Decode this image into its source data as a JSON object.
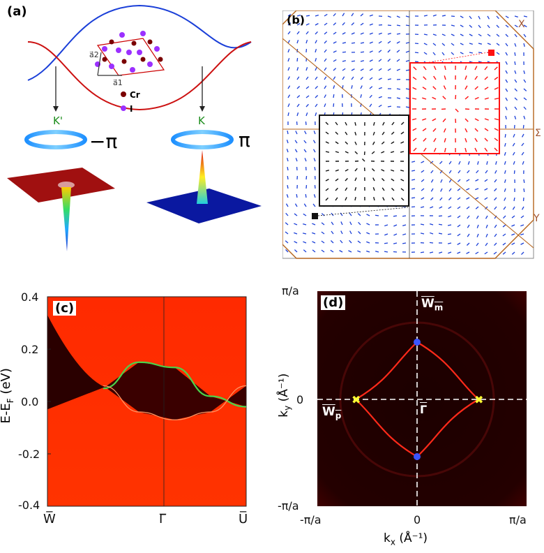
{
  "panel_a": {
    "label": "(a)",
    "lattice_a1": "a⃗1",
    "lattice_a2": "a⃗2",
    "legend_cr": "Cr",
    "legend_i": "I",
    "valley_left": "K'",
    "valley_right": "K",
    "berry_left": "−π",
    "berry_right": "π"
  },
  "panel_b": {
    "label": "(b)",
    "point_x": "X",
    "point_sigma": "Σ",
    "point_y": "Y"
  },
  "panel_c": {
    "label": "(c)",
    "ylabel": "E-E",
    "ylabel_sub": "F",
    "ylabel_unit": " (eV)",
    "xticks": [
      "W̅",
      "Γ̅",
      "U̅"
    ],
    "yticks": [
      "0.4",
      "0.2",
      "0.0",
      "-0.2",
      "-0.4"
    ]
  },
  "panel_d": {
    "label": "(d)",
    "xlabel": "k",
    "xlabel_sub": "x",
    "xlabel_unit": " (Å⁻¹)",
    "ylabel": "k",
    "ylabel_sub": "y",
    "ylabel_unit": " (Å⁻¹)",
    "xticks": [
      "-π/a",
      "0",
      "π/a"
    ],
    "yticks": [
      "π/a",
      "0",
      "-π/a"
    ],
    "point_wm": "W",
    "point_wm_sub": "m",
    "point_wp": "W",
    "point_wp_sub": "p",
    "point_gamma": "Γ"
  },
  "chart_data": [
    {
      "type": "line",
      "panel": "c",
      "x_ticks": [
        "W̅",
        "Γ̅",
        "U̅"
      ],
      "ylim": [
        -0.4,
        0.4
      ],
      "series": [
        {
          "values": [
            0.05,
            0.15,
            0.13,
            0.02,
            -0.02
          ]
        },
        {
          "values": [
            0.06,
            -0.04,
            -0.07,
            -0.04,
            0.06
          ]
        }
      ]
    },
    {
      "type": "scatter",
      "panel": "d",
      "xlim": [
        "-π/a",
        "π/a"
      ],
      "ylim": [
        "-π/a",
        "π/a"
      ]
    }
  ],
  "colors": {
    "red": "#ff2200",
    "dark": "#1a0000",
    "blue": "#1a3fd8",
    "brown": "#b5651d",
    "green": "#4bd34b",
    "yellow": "#ffff00"
  }
}
